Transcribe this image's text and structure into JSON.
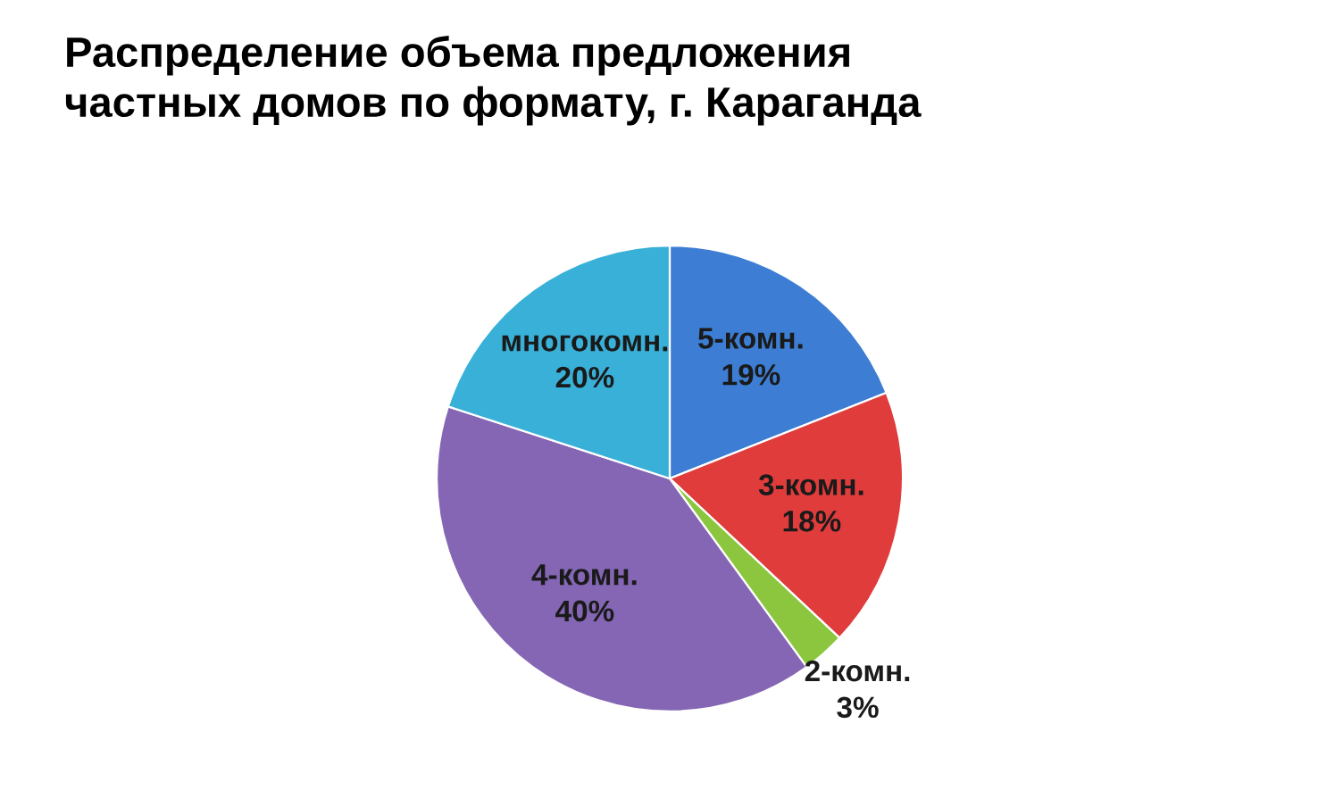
{
  "chart_data": {
    "type": "pie",
    "title": "Распределение объема предложения\nчастных домов по формату, г. Караганда",
    "categories": [
      "5-комн.",
      "3-комн.",
      "2-комн.",
      "4-комн.",
      "многокомн."
    ],
    "values": [
      19,
      18,
      3,
      40,
      20
    ],
    "value_labels": [
      "19%",
      "18%",
      "3%",
      "40%",
      "20%"
    ],
    "colors": [
      "#3d7ed4",
      "#e03c3c",
      "#8cc63e",
      "#8466b4",
      "#39b0d8"
    ]
  }
}
